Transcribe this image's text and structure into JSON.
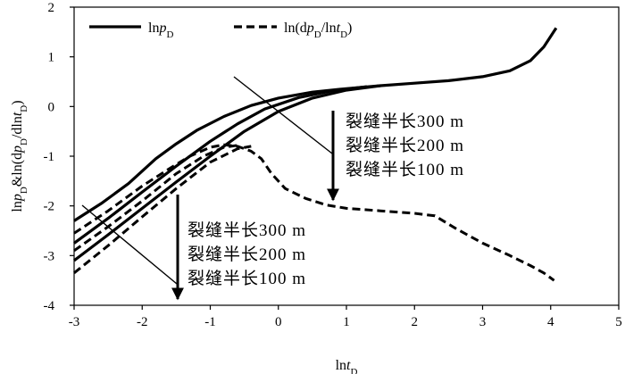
{
  "chart_data": {
    "type": "line",
    "xlabel": "lnt_D",
    "ylabel": "lnp_D&ln(dp_D/dlnt_D)",
    "xlim": [
      -3,
      5
    ],
    "ylim": [
      -4,
      2
    ],
    "xticks": [
      "-3",
      "-2",
      "-1",
      "0",
      "1",
      "2",
      "3",
      "4",
      "5"
    ],
    "yticks": [
      "2",
      "1",
      "0",
      "-1",
      "-2",
      "-3",
      "-4"
    ],
    "grid": false,
    "legend_position": "top-left",
    "legend": [
      {
        "label": "lnp_D",
        "style": "solid"
      },
      {
        "label": "ln(dp_D/lnt_D)",
        "style": "dashed"
      }
    ],
    "series": [
      {
        "name": "lnp_D",
        "group": "300 m",
        "style": "solid",
        "x": [
          -3,
          -2.6,
          -2.2,
          -1.8,
          -1.5,
          -1.2,
          -0.8,
          -0.4,
          0,
          0.5,
          1,
          1.5,
          2,
          2.5,
          3,
          3.4,
          3.7,
          3.9,
          4.08
        ],
        "y": [
          -2.3,
          -1.95,
          -1.55,
          -1.05,
          -0.75,
          -0.48,
          -0.2,
          0.02,
          0.17,
          0.29,
          0.36,
          0.42,
          0.47,
          0.52,
          0.6,
          0.72,
          0.92,
          1.2,
          1.58
        ]
      },
      {
        "name": "lnp_D",
        "group": "200 m",
        "style": "solid",
        "x": [
          -3,
          -2.5,
          -2,
          -1.5,
          -1,
          -0.6,
          -0.2,
          0.3,
          0.8,
          1.3
        ],
        "y": [
          -2.75,
          -2.25,
          -1.72,
          -1.2,
          -0.7,
          -0.35,
          -0.05,
          0.18,
          0.32,
          0.4
        ]
      },
      {
        "name": "lnp_D",
        "group": "100 m",
        "style": "solid",
        "x": [
          -3,
          -2.5,
          -2,
          -1.5,
          -1,
          -0.5,
          0,
          0.5,
          1,
          1.5
        ],
        "y": [
          -3.1,
          -2.58,
          -2.05,
          -1.52,
          -1.0,
          -0.5,
          -0.1,
          0.17,
          0.33,
          0.42
        ]
      },
      {
        "name": "ln(dp_D/lnt_D)",
        "group": "300 m",
        "style": "dashed",
        "x": [
          -3,
          -2.5,
          -2,
          -1.6,
          -1.3,
          -1.0,
          -0.8,
          -0.6,
          -0.4,
          -0.25,
          -0.1,
          0.1,
          0.4,
          0.7,
          1.0,
          1.5,
          2.0,
          2.3,
          2.6,
          3.0,
          3.4,
          3.7,
          3.9,
          4.05
        ],
        "y": [
          -2.55,
          -2.1,
          -1.6,
          -1.25,
          -1.0,
          -0.82,
          -0.77,
          -0.8,
          -0.9,
          -1.05,
          -1.35,
          -1.65,
          -1.85,
          -1.98,
          -2.05,
          -2.1,
          -2.15,
          -2.2,
          -2.45,
          -2.75,
          -3.0,
          -3.2,
          -3.35,
          -3.5
        ]
      },
      {
        "name": "ln(dp_D/lnt_D)",
        "group": "200 m",
        "style": "dashed",
        "x": [
          -3,
          -2.5,
          -2,
          -1.5,
          -1.1,
          -0.8,
          -0.6
        ],
        "y": [
          -2.9,
          -2.42,
          -1.9,
          -1.35,
          -1.0,
          -0.82,
          -0.78
        ]
      },
      {
        "name": "ln(dp_D/lnt_D)",
        "group": "100 m",
        "style": "dashed",
        "x": [
          -3,
          -2.5,
          -2,
          -1.5,
          -1.0,
          -0.6,
          -0.4
        ],
        "y": [
          -3.35,
          -2.8,
          -2.22,
          -1.65,
          -1.12,
          -0.85,
          -0.8
        ]
      }
    ],
    "annotations": [
      {
        "group": "upper",
        "lines": [
          "裂缝半长300 m",
          "裂缝半长200 m",
          "裂缝半长100 m"
        ]
      },
      {
        "group": "lower",
        "lines": [
          "裂缝半长300 m",
          "裂缝半长200 m",
          "裂缝半长100 m"
        ]
      }
    ]
  }
}
